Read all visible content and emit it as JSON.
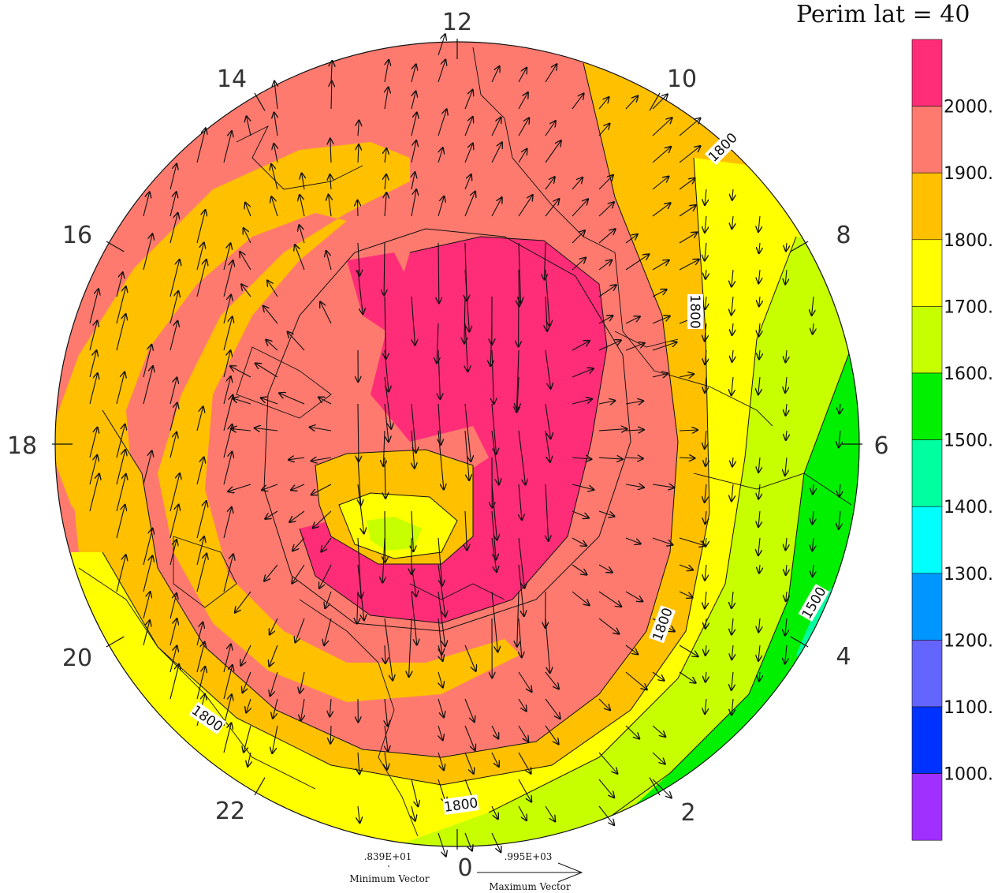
{
  "title": "Perim lat =  40",
  "hour_labels": [
    "12",
    "10",
    "8",
    "6",
    "4",
    "2",
    "0",
    "22",
    "20",
    "18",
    "16",
    "14"
  ],
  "colorbar": {
    "labels": [
      "2000.",
      "1900.",
      "1800.",
      "1700.",
      "1600.",
      "1500.",
      "1400.",
      "1300.",
      "1200.",
      "1100.",
      "1000."
    ],
    "colors": [
      "#ff2d78",
      "#ff7a6e",
      "#ffc000",
      "#ffff00",
      "#c8ff00",
      "#00f000",
      "#00ffa0",
      "#00ffff",
      "#0096ff",
      "#6464ff",
      "#0032ff",
      "#a030ff"
    ]
  },
  "contour_labels": [
    "1800",
    "1800",
    "1800",
    "1500",
    "1800",
    "1800"
  ],
  "vectors": {
    "min_value": ".839E+01",
    "min_label": "Minimum Vector",
    "max_value": ".995E+03",
    "max_label": "Maximum Vector"
  }
}
